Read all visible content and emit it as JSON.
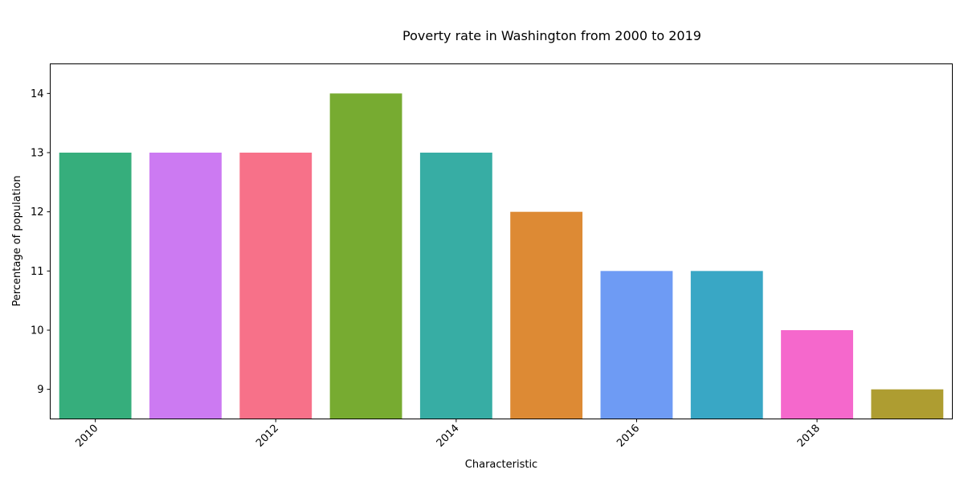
{
  "chart_data": {
    "type": "bar",
    "title": "Poverty rate in Washington from 2000 to 2019",
    "xlabel": "Characteristic",
    "ylabel": "Percentage of population",
    "x": [
      2010,
      2011,
      2012,
      2013,
      2014,
      2015,
      2016,
      2017,
      2018,
      2019
    ],
    "values": [
      13,
      13,
      13,
      14,
      13,
      12,
      11,
      11,
      10,
      9
    ],
    "colors": [
      "#36ae7c",
      "#cc7af2",
      "#f77189",
      "#77ab31",
      "#37ada4",
      "#dd8a34",
      "#6e9bf4",
      "#39a7c5",
      "#f568cc",
      "#ae9d31"
    ],
    "xticks": [
      "2010",
      "2012",
      "2014",
      "2016",
      "2018"
    ],
    "yticks": [
      "9",
      "10",
      "11",
      "12",
      "13",
      "14"
    ],
    "ylim": [
      8.5,
      14.5
    ],
    "xlim": [
      2009.5,
      2019.5
    ],
    "grid": false,
    "legend": "none"
  }
}
